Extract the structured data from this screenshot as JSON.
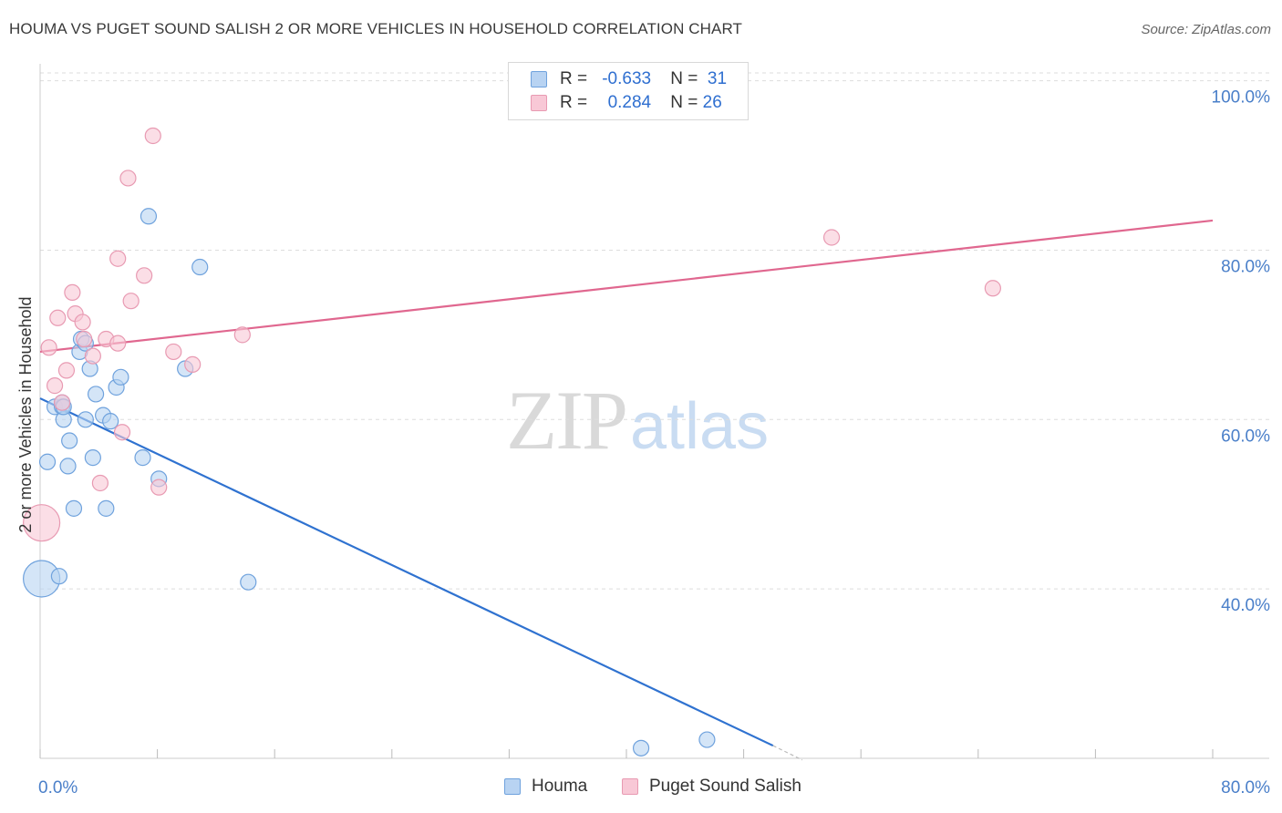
{
  "header": {
    "title": "HOUMA VS PUGET SOUND SALISH 2 OR MORE VEHICLES IN HOUSEHOLD CORRELATION CHART",
    "source": "Source: ZipAtlas.com"
  },
  "watermark": {
    "zip": "ZIP",
    "atlas": "atlas"
  },
  "legend": {
    "r_label": "R =",
    "n_label": "N =",
    "series": [
      {
        "name": "Houma",
        "r": "-0.633",
        "n": "31",
        "fill": "#b8d3f2",
        "stroke": "#6fa2dd"
      },
      {
        "name": "Puget Sound Salish",
        "r": "0.284",
        "n": "26",
        "fill": "#f8c8d6",
        "stroke": "#e89ab2"
      }
    ]
  },
  "colors": {
    "houma_fill": "#b8d3f2",
    "houma_stroke": "#6fa2dd",
    "houma_line": "#2f72d0",
    "salish_fill": "#f8c8d6",
    "salish_stroke": "#e89ab2",
    "salish_line": "#e0678f",
    "grid": "#dddddd",
    "axis": "#cccccc",
    "tick_label": "#4a7fc9"
  },
  "chart_data": {
    "type": "scatter",
    "title": "HOUMA VS PUGET SOUND SALISH 2 OR MORE VEHICLES IN HOUSEHOLD CORRELATION CHART",
    "xlabel": "",
    "ylabel": "2 or more Vehicles in Household",
    "xlim": [
      0,
      80
    ],
    "ylim": [
      20,
      102
    ],
    "x_tick_labels": [
      "0.0%",
      "80.0%"
    ],
    "y_ticks": [
      40,
      60,
      80,
      100
    ],
    "y_tick_labels": [
      "40.0%",
      "60.0%",
      "80.0%",
      "100.0%"
    ],
    "grid": true,
    "series": [
      {
        "name": "Houma",
        "points": [
          {
            "x": 0.1,
            "y": 41.2,
            "big": true
          },
          {
            "x": 0.5,
            "y": 55.0
          },
          {
            "x": 1.0,
            "y": 61.5
          },
          {
            "x": 1.3,
            "y": 41.5
          },
          {
            "x": 1.5,
            "y": 61.5
          },
          {
            "x": 1.5,
            "y": 62.0
          },
          {
            "x": 1.6,
            "y": 60.0
          },
          {
            "x": 1.9,
            "y": 54.5
          },
          {
            "x": 2.0,
            "y": 57.5
          },
          {
            "x": 2.3,
            "y": 49.5
          },
          {
            "x": 2.7,
            "y": 68.0
          },
          {
            "x": 2.8,
            "y": 69.5
          },
          {
            "x": 3.1,
            "y": 69.0
          },
          {
            "x": 3.1,
            "y": 60.0
          },
          {
            "x": 3.4,
            "y": 66.0
          },
          {
            "x": 3.6,
            "y": 55.5
          },
          {
            "x": 3.8,
            "y": 63.0
          },
          {
            "x": 4.3,
            "y": 60.5
          },
          {
            "x": 4.5,
            "y": 49.5
          },
          {
            "x": 4.8,
            "y": 59.8
          },
          {
            "x": 5.2,
            "y": 63.8
          },
          {
            "x": 5.5,
            "y": 65.0
          },
          {
            "x": 7.0,
            "y": 55.5
          },
          {
            "x": 7.4,
            "y": 84.0
          },
          {
            "x": 8.1,
            "y": 53.0
          },
          {
            "x": 9.9,
            "y": 66.0
          },
          {
            "x": 10.9,
            "y": 78.0
          },
          {
            "x": 14.2,
            "y": 40.8
          },
          {
            "x": 41.0,
            "y": 21.2
          },
          {
            "x": 45.5,
            "y": 22.2
          },
          {
            "x": 1.6,
            "y": 61.5
          }
        ],
        "trend": {
          "x1": 0,
          "y1": 62.5,
          "x2": 50,
          "y2": 21.5,
          "dash_x2": 52,
          "dash_y2": 19.8
        }
      },
      {
        "name": "Puget Sound Salish",
        "points": [
          {
            "x": 0.1,
            "y": 47.8,
            "big": true
          },
          {
            "x": 0.6,
            "y": 68.5
          },
          {
            "x": 1.0,
            "y": 64.0
          },
          {
            "x": 1.2,
            "y": 72.0
          },
          {
            "x": 1.5,
            "y": 62.0
          },
          {
            "x": 1.8,
            "y": 65.8
          },
          {
            "x": 2.2,
            "y": 75.0
          },
          {
            "x": 2.4,
            "y": 72.5
          },
          {
            "x": 2.9,
            "y": 71.5
          },
          {
            "x": 3.0,
            "y": 69.5
          },
          {
            "x": 3.6,
            "y": 67.5
          },
          {
            "x": 4.1,
            "y": 52.5
          },
          {
            "x": 4.5,
            "y": 69.5
          },
          {
            "x": 5.3,
            "y": 69.0
          },
          {
            "x": 5.3,
            "y": 79.0
          },
          {
            "x": 5.6,
            "y": 58.5
          },
          {
            "x": 6.0,
            "y": 88.5
          },
          {
            "x": 6.2,
            "y": 74.0
          },
          {
            "x": 7.1,
            "y": 77.0
          },
          {
            "x": 7.7,
            "y": 93.5
          },
          {
            "x": 8.1,
            "y": 52.0
          },
          {
            "x": 9.1,
            "y": 68.0
          },
          {
            "x": 10.4,
            "y": 66.5
          },
          {
            "x": 13.8,
            "y": 70.0
          },
          {
            "x": 54.0,
            "y": 81.5
          },
          {
            "x": 65.0,
            "y": 75.5
          }
        ],
        "trend": {
          "x1": 0,
          "y1": 68.0,
          "x2": 80,
          "y2": 83.5
        }
      }
    ]
  }
}
